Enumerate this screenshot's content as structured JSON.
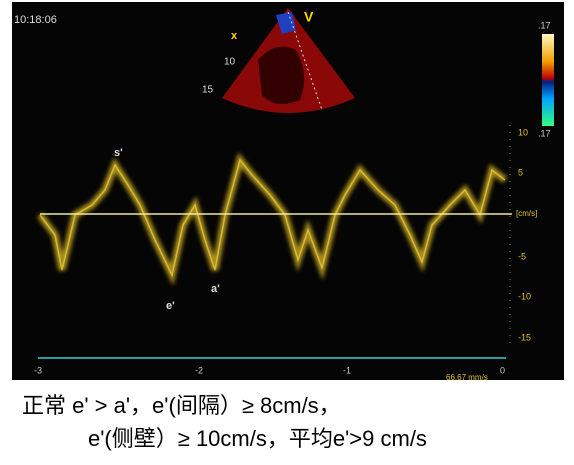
{
  "clock": "10:18:06",
  "sector": {
    "markers": [
      "x",
      "V"
    ],
    "depths": [
      "10",
      "15"
    ]
  },
  "color_bar": {
    "top": ".17",
    "bottom": ".17"
  },
  "velocity_axis": {
    "labels": [
      "10",
      "5",
      "[cm/s]",
      "-5",
      "-10",
      "-15"
    ]
  },
  "time_axis": {
    "labels": [
      "-3",
      "-2",
      "-1",
      "0"
    ],
    "sweep": "66.67 mm/s"
  },
  "annotations": [
    "s'",
    "e'",
    "a'"
  ],
  "caption": [
    "正常 e' > a'，e'(间隔）≥ 8cm/s，",
    "e'(侧壁）≥ 10cm/s，平均e'>9  cm/s"
  ]
}
